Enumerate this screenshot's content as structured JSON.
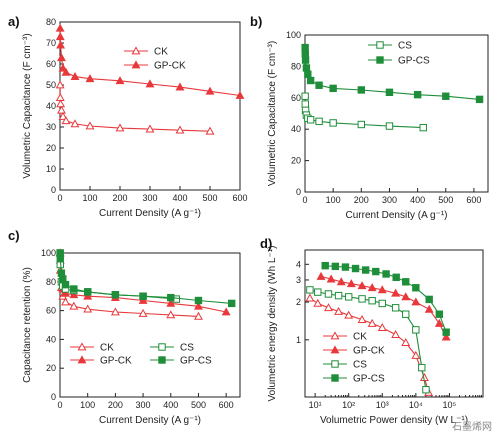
{
  "watermark": "石墨烯网",
  "colors": {
    "red": "#e8383b",
    "green": "#1f8e3a"
  },
  "chart_data": [
    {
      "panel_label": "a)",
      "type": "line",
      "xlabel": "Current Density (A g⁻¹)",
      "ylabel": "Volumetric Capacitance (F cm⁻³)",
      "xlim": [
        0,
        600
      ],
      "ylim": [
        0,
        80
      ],
      "xticks": [
        0,
        100,
        200,
        300,
        400,
        500,
        600
      ],
      "yticks": [
        0,
        10,
        20,
        30,
        40,
        50,
        60,
        70,
        80
      ],
      "legend_position": "top-right",
      "series": [
        {
          "name": "CK",
          "color": "#e8383b",
          "marker": "open-triangle",
          "x": [
            0.5,
            1,
            2,
            5,
            10,
            20,
            50,
            100,
            200,
            300,
            400,
            500
          ],
          "y": [
            50,
            44,
            41,
            38,
            35,
            33,
            31.5,
            30.5,
            29.5,
            29,
            28.5,
            28
          ]
        },
        {
          "name": "GP-CK",
          "color": "#e8383b",
          "marker": "filled-triangle",
          "x": [
            0.5,
            1,
            2,
            5,
            10,
            20,
            50,
            100,
            200,
            300,
            400,
            500,
            600
          ],
          "y": [
            77,
            73,
            69,
            63,
            58,
            56,
            54,
            53,
            52,
            50.5,
            49,
            47,
            45
          ]
        }
      ]
    },
    {
      "panel_label": "b)",
      "type": "line",
      "xlabel": "Current Density (A g⁻¹)",
      "ylabel": "Volumetric Capacitance (F cm⁻³)",
      "xlim": [
        0,
        650
      ],
      "ylim": [
        0,
        100
      ],
      "xticks": [
        0,
        100,
        200,
        300,
        400,
        500,
        600
      ],
      "yticks": [
        0,
        20,
        40,
        60,
        80,
        100
      ],
      "legend_position": "top-right",
      "series": [
        {
          "name": "CS",
          "color": "#1f8e3a",
          "marker": "open-square",
          "x": [
            0.5,
            1,
            2,
            5,
            10,
            20,
            50,
            100,
            200,
            300,
            420
          ],
          "y": [
            61,
            56,
            52,
            49,
            47,
            46,
            45,
            44,
            43,
            42,
            41
          ]
        },
        {
          "name": "GP-CS",
          "color": "#1f8e3a",
          "marker": "filled-square",
          "x": [
            0.5,
            1,
            2,
            5,
            10,
            20,
            50,
            100,
            200,
            300,
            400,
            500,
            620
          ],
          "y": [
            92,
            88,
            84,
            79,
            75,
            71,
            68,
            66,
            65,
            63.5,
            62,
            61,
            59
          ]
        }
      ]
    },
    {
      "panel_label": "c)",
      "type": "line",
      "xlabel": "Current Density (A g⁻¹)",
      "ylabel": "Capacitance retention (%)",
      "xlim": [
        0,
        650
      ],
      "ylim": [
        0,
        100
      ],
      "xticks": [
        0,
        100,
        200,
        300,
        400,
        500,
        600
      ],
      "yticks": [
        0,
        20,
        40,
        60,
        80,
        100
      ],
      "legend_position": "bottom-left",
      "legend_layout": "two-columns",
      "series": [
        {
          "name": "CK",
          "color": "#e8383b",
          "marker": "open-triangle",
          "x": [
            0.5,
            1,
            5,
            10,
            20,
            50,
            100,
            200,
            300,
            400,
            500
          ],
          "y": [
            100,
            88,
            76,
            70,
            66,
            63,
            61,
            59,
            58,
            57,
            56
          ]
        },
        {
          "name": "GP-CK",
          "color": "#e8383b",
          "marker": "filled-triangle",
          "x": [
            0.5,
            1,
            5,
            10,
            20,
            50,
            100,
            200,
            300,
            400,
            500,
            600
          ],
          "y": [
            100,
            95,
            82,
            75,
            72,
            71,
            70,
            69,
            67,
            65,
            63,
            59
          ]
        },
        {
          "name": "CS",
          "color": "#1f8e3a",
          "marker": "open-square",
          "x": [
            0.5,
            1,
            5,
            10,
            20,
            50,
            100,
            200,
            300,
            420
          ],
          "y": [
            100,
            92,
            80,
            77,
            75,
            74,
            73,
            71,
            70,
            68
          ]
        },
        {
          "name": "GP-CS",
          "color": "#1f8e3a",
          "marker": "filled-square",
          "x": [
            0.5,
            1,
            5,
            10,
            20,
            50,
            100,
            200,
            300,
            400,
            500,
            620
          ],
          "y": [
            100,
            96,
            86,
            82,
            78,
            75,
            73,
            71,
            70,
            69,
            67,
            65
          ]
        }
      ]
    },
    {
      "panel_label": "d)",
      "type": "line",
      "xlabel": "Volumetric Power density (W L⁻¹)",
      "ylabel": "Volumetric energy density (Wh L⁻¹)",
      "xscale": "log",
      "yscale": "log",
      "xlim": [
        5,
        1000000
      ],
      "ylim": [
        0.35,
        5.2
      ],
      "xticks": [
        10,
        100,
        1000,
        10000,
        100000
      ],
      "xticklabels": [
        "10¹",
        "10²",
        "10³",
        "10⁴",
        "10⁵"
      ],
      "yticks": [
        1,
        2,
        3,
        4
      ],
      "legend_position": "bottom-left",
      "series": [
        {
          "name": "CK",
          "color": "#e8383b",
          "marker": "open-triangle",
          "x": [
            7,
            12,
            25,
            50,
            100,
            250,
            500,
            1000,
            2500,
            5000,
            10000,
            18000,
            24000
          ],
          "y": [
            2.15,
            1.95,
            1.8,
            1.68,
            1.57,
            1.45,
            1.35,
            1.25,
            1.1,
            0.95,
            0.75,
            0.5,
            0.38
          ]
        },
        {
          "name": "GP-CK",
          "color": "#e8383b",
          "marker": "filled-triangle",
          "x": [
            15,
            30,
            60,
            120,
            250,
            500,
            1000,
            2500,
            5000,
            10000,
            25000,
            50000,
            80000
          ],
          "y": [
            3.2,
            3.05,
            2.9,
            2.8,
            2.7,
            2.6,
            2.5,
            2.35,
            2.2,
            2.0,
            1.75,
            1.35,
            1.05
          ]
        },
        {
          "name": "CS",
          "color": "#1f8e3a",
          "marker": "open-square",
          "x": [
            7,
            12,
            25,
            50,
            100,
            250,
            500,
            1000,
            2500,
            5000,
            10000,
            15000,
            20000
          ],
          "y": [
            2.5,
            2.4,
            2.32,
            2.25,
            2.2,
            2.12,
            2.05,
            1.95,
            1.8,
            1.6,
            1.2,
            0.6,
            0.4
          ]
        },
        {
          "name": "GP-CS",
          "color": "#1f8e3a",
          "marker": "filled-square",
          "x": [
            20,
            40,
            80,
            160,
            320,
            640,
            1300,
            2600,
            5000,
            10000,
            25000,
            50000,
            80000
          ],
          "y": [
            3.9,
            3.85,
            3.8,
            3.7,
            3.6,
            3.5,
            3.35,
            3.15,
            2.9,
            2.6,
            2.1,
            1.6,
            1.15
          ]
        }
      ]
    }
  ]
}
